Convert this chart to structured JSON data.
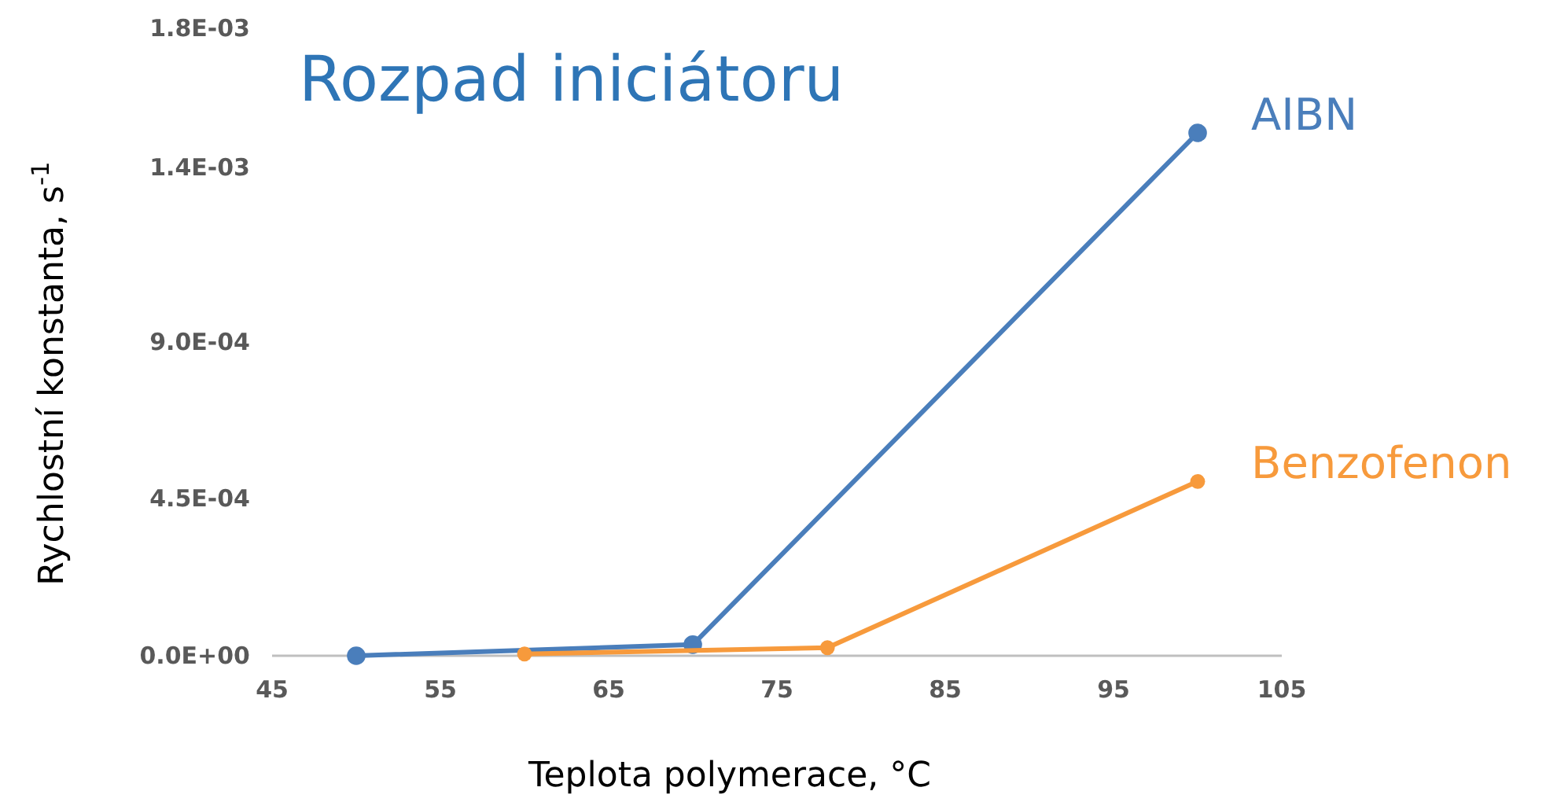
{
  "chart_data": {
    "type": "line",
    "title": "Rozpad iniciátoru",
    "xlabel": "Teplota polymerace, °C",
    "ylabel": "Rychlostní konstanta, s$^{-1}$",
    "xlim": [
      45,
      105
    ],
    "xticks": [
      45,
      55,
      65,
      75,
      85,
      95,
      105
    ],
    "ylim": [
      0,
      0.0018
    ],
    "yticks": [
      {
        "value": 0,
        "label": "0.0E+00"
      },
      {
        "value": 0.00045,
        "label": "4.5E-04"
      },
      {
        "value": 0.0009,
        "label": "9.0E-04"
      },
      {
        "value": 0.0014,
        "label": "1.4E-03"
      },
      {
        "value": 0.0018,
        "label": "1.8E-03"
      }
    ],
    "grid": false,
    "legend": false,
    "marker": "circle",
    "line_style": "solid",
    "series": [
      {
        "name": "AIBN",
        "color": "#4a7ebb",
        "x": [
          50,
          70,
          100
        ],
        "values": [
          0,
          3.2e-05,
          0.0015
        ]
      },
      {
        "name": "Benzofenon",
        "color": "#f79a3c",
        "x": [
          60,
          78,
          100
        ],
        "values": [
          5e-06,
          2.3e-05,
          0.0005
        ]
      }
    ]
  }
}
